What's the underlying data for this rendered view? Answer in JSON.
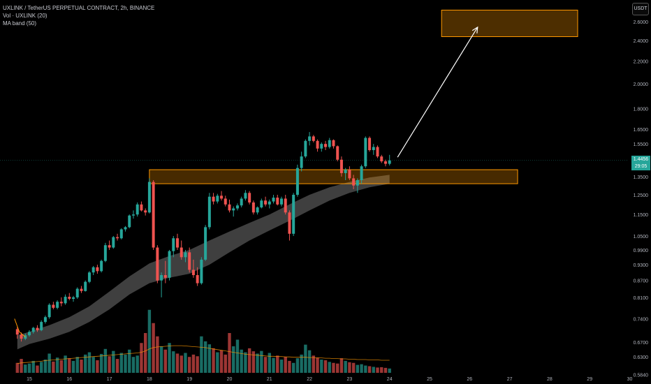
{
  "header": {
    "symbol_line": "UXLINK / TetherUS PERPETUAL CONTRACT, 2h, BINANCE",
    "volume_line": "Vol · UXLINK (20)",
    "ma_line": "MA band (50)",
    "unit_button": "USDT"
  },
  "last_price": {
    "value": "1.4456",
    "countdown": "29:05"
  },
  "colors": {
    "up": "#26a69a",
    "down": "#ef5350",
    "zone": "#ff9800",
    "band": "#4a4a4a",
    "volume_ma": "#ff9800",
    "arrow": "#ffffff"
  },
  "chart_data": {
    "type": "candlestick",
    "title": "",
    "y_scale": "log",
    "ylim": [
      0.584,
      2.8
    ],
    "y_ticks": [
      "2.6000",
      "2.4000",
      "2.2000",
      "2.0000",
      "1.8000",
      "1.6500",
      "1.5500",
      "1.3500",
      "1.2500",
      "1.1500",
      "1.0500",
      "0.9900",
      "0.9300",
      "0.8700",
      "0.8100",
      "0.7400",
      "0.6700",
      "0.6300",
      "0.5840"
    ],
    "x_ticks": [
      "15",
      "16",
      "17",
      "18",
      "19",
      "20",
      "21",
      "22",
      "23",
      "24",
      "25",
      "26",
      "27",
      "28",
      "29",
      "30"
    ],
    "x_range": [
      14.6,
      30.3
    ],
    "annotations": {
      "support_zone": {
        "x_start": 18.0,
        "x_end": 27.2,
        "y_low": 1.31,
        "y_high": 1.39
      },
      "target_zone": {
        "x_start": 25.3,
        "x_end": 28.7,
        "y_low": 2.44,
        "y_high": 2.73
      },
      "arrow": {
        "from": [
          24.2,
          1.465
        ],
        "to": [
          26.2,
          2.54
        ]
      }
    },
    "candles": [
      [
        14.7,
        0.708,
        0.715,
        0.68,
        0.692
      ],
      [
        14.8,
        0.692,
        0.698,
        0.672,
        0.68
      ],
      [
        14.9,
        0.68,
        0.695,
        0.676,
        0.69
      ],
      [
        15.0,
        0.69,
        0.705,
        0.686,
        0.7
      ],
      [
        15.1,
        0.7,
        0.715,
        0.695,
        0.712
      ],
      [
        15.2,
        0.712,
        0.72,
        0.7,
        0.705
      ],
      [
        15.3,
        0.705,
        0.735,
        0.702,
        0.73
      ],
      [
        15.4,
        0.73,
        0.75,
        0.725,
        0.745
      ],
      [
        15.5,
        0.745,
        0.79,
        0.74,
        0.785
      ],
      [
        15.6,
        0.785,
        0.795,
        0.77,
        0.775
      ],
      [
        15.7,
        0.775,
        0.8,
        0.77,
        0.795
      ],
      [
        15.8,
        0.795,
        0.81,
        0.78,
        0.79
      ],
      [
        15.9,
        0.79,
        0.82,
        0.785,
        0.812
      ],
      [
        16.0,
        0.812,
        0.825,
        0.8,
        0.805
      ],
      [
        16.1,
        0.805,
        0.815,
        0.795,
        0.81
      ],
      [
        16.2,
        0.81,
        0.845,
        0.805,
        0.84
      ],
      [
        16.3,
        0.84,
        0.85,
        0.825,
        0.832
      ],
      [
        16.4,
        0.832,
        0.87,
        0.83,
        0.865
      ],
      [
        16.5,
        0.865,
        0.905,
        0.86,
        0.9
      ],
      [
        16.6,
        0.9,
        0.925,
        0.89,
        0.92
      ],
      [
        16.7,
        0.92,
        0.93,
        0.895,
        0.905
      ],
      [
        16.8,
        0.905,
        0.95,
        0.9,
        0.945
      ],
      [
        16.9,
        0.945,
        1.02,
        0.94,
        1.01
      ],
      [
        17.0,
        1.01,
        1.03,
        0.99,
        1.0
      ],
      [
        17.1,
        1.0,
        1.05,
        0.995,
        1.045
      ],
      [
        17.2,
        1.045,
        1.06,
        1.03,
        1.04
      ],
      [
        17.3,
        1.04,
        1.085,
        1.035,
        1.08
      ],
      [
        17.4,
        1.08,
        1.095,
        1.07,
        1.09
      ],
      [
        17.5,
        1.09,
        1.15,
        1.085,
        1.145
      ],
      [
        17.6,
        1.145,
        1.17,
        1.13,
        1.15
      ],
      [
        17.7,
        1.15,
        1.21,
        1.14,
        1.2
      ],
      [
        17.8,
        1.2,
        1.215,
        1.165,
        1.17
      ],
      [
        17.9,
        1.17,
        1.18,
        1.145,
        1.16
      ],
      [
        18.0,
        1.16,
        1.34,
        1.155,
        1.32
      ],
      [
        18.1,
        1.32,
        1.33,
        0.99,
        1.0
      ],
      [
        18.2,
        1.0,
        1.01,
        0.86,
        0.87
      ],
      [
        18.3,
        0.87,
        0.9,
        0.81,
        0.89
      ],
      [
        18.4,
        0.89,
        0.945,
        0.86,
        0.88
      ],
      [
        18.5,
        0.88,
        0.99,
        0.87,
        0.985
      ],
      [
        18.6,
        0.985,
        1.05,
        0.96,
        1.04
      ],
      [
        18.7,
        1.04,
        1.06,
        0.99,
        1.0
      ],
      [
        18.8,
        1.0,
        1.03,
        0.95,
        0.96
      ],
      [
        18.9,
        0.96,
        0.99,
        0.94,
        0.98
      ],
      [
        19.0,
        0.98,
        1.0,
        0.9,
        0.91
      ],
      [
        19.1,
        0.91,
        0.95,
        0.88,
        0.89
      ],
      [
        19.2,
        0.89,
        0.92,
        0.85,
        0.86
      ],
      [
        19.3,
        0.86,
        0.96,
        0.855,
        0.95
      ],
      [
        19.4,
        0.95,
        1.1,
        0.945,
        1.09
      ],
      [
        19.5,
        1.09,
        1.26,
        1.08,
        1.24
      ],
      [
        19.6,
        1.24,
        1.26,
        1.2,
        1.215
      ],
      [
        19.7,
        1.215,
        1.255,
        1.205,
        1.245
      ],
      [
        19.8,
        1.245,
        1.27,
        1.22,
        1.23
      ],
      [
        19.9,
        1.23,
        1.245,
        1.19,
        1.2
      ],
      [
        20.0,
        1.2,
        1.225,
        1.16,
        1.17
      ],
      [
        20.1,
        1.17,
        1.19,
        1.14,
        1.18
      ],
      [
        20.2,
        1.18,
        1.205,
        1.17,
        1.195
      ],
      [
        20.3,
        1.195,
        1.24,
        1.185,
        1.23
      ],
      [
        20.4,
        1.23,
        1.275,
        1.22,
        1.26
      ],
      [
        20.5,
        1.26,
        1.27,
        1.2,
        1.21
      ],
      [
        20.6,
        1.21,
        1.22,
        1.15,
        1.16
      ],
      [
        20.7,
        1.16,
        1.19,
        1.15,
        1.185
      ],
      [
        20.8,
        1.185,
        1.23,
        1.18,
        1.22
      ],
      [
        20.9,
        1.22,
        1.24,
        1.19,
        1.2
      ],
      [
        21.0,
        1.2,
        1.225,
        1.18,
        1.215
      ],
      [
        21.1,
        1.215,
        1.25,
        1.205,
        1.235
      ],
      [
        21.2,
        1.235,
        1.25,
        1.195,
        1.2
      ],
      [
        21.3,
        1.2,
        1.24,
        1.19,
        1.23
      ],
      [
        21.4,
        1.23,
        1.25,
        1.15,
        1.16
      ],
      [
        21.5,
        1.16,
        1.17,
        1.03,
        1.06
      ],
      [
        21.6,
        1.06,
        1.26,
        1.05,
        1.25
      ],
      [
        21.7,
        1.25,
        1.42,
        1.24,
        1.4
      ],
      [
        21.8,
        1.4,
        1.5,
        1.38,
        1.47
      ],
      [
        21.9,
        1.47,
        1.58,
        1.46,
        1.57
      ],
      [
        22.0,
        1.57,
        1.63,
        1.54,
        1.6
      ],
      [
        22.1,
        1.6,
        1.61,
        1.56,
        1.57
      ],
      [
        22.2,
        1.57,
        1.58,
        1.5,
        1.52
      ],
      [
        22.3,
        1.52,
        1.56,
        1.5,
        1.55
      ],
      [
        22.4,
        1.55,
        1.57,
        1.51,
        1.53
      ],
      [
        22.5,
        1.53,
        1.59,
        1.52,
        1.575
      ],
      [
        22.6,
        1.575,
        1.58,
        1.52,
        1.535
      ],
      [
        22.7,
        1.535,
        1.54,
        1.44,
        1.45
      ],
      [
        22.8,
        1.45,
        1.47,
        1.35,
        1.37
      ],
      [
        22.9,
        1.37,
        1.4,
        1.33,
        1.39
      ],
      [
        23.0,
        1.39,
        1.41,
        1.33,
        1.34
      ],
      [
        23.1,
        1.34,
        1.36,
        1.28,
        1.3
      ],
      [
        23.2,
        1.3,
        1.34,
        1.26,
        1.33
      ],
      [
        23.3,
        1.33,
        1.42,
        1.31,
        1.41
      ],
      [
        23.4,
        1.41,
        1.6,
        1.4,
        1.59
      ],
      [
        23.5,
        1.59,
        1.6,
        1.5,
        1.51
      ],
      [
        23.6,
        1.51,
        1.55,
        1.48,
        1.53
      ],
      [
        23.7,
        1.53,
        1.54,
        1.46,
        1.47
      ],
      [
        23.8,
        1.47,
        1.48,
        1.43,
        1.44
      ],
      [
        23.9,
        1.44,
        1.45,
        1.41,
        1.425
      ],
      [
        24.0,
        1.425,
        1.48,
        1.415,
        1.4456
      ]
    ],
    "ma_band": {
      "x": [
        14.7,
        15.0,
        15.5,
        16.0,
        16.5,
        17.0,
        17.5,
        18.0,
        18.5,
        19.0,
        19.5,
        20.0,
        20.5,
        21.0,
        21.5,
        22.0,
        22.5,
        23.0,
        23.5,
        24.0
      ],
      "upper": [
        0.69,
        0.7,
        0.72,
        0.745,
        0.78,
        0.83,
        0.885,
        0.935,
        0.965,
        0.99,
        1.03,
        1.07,
        1.11,
        1.15,
        1.2,
        1.25,
        1.29,
        1.32,
        1.345,
        1.36
      ],
      "lower": [
        0.65,
        0.665,
        0.68,
        0.7,
        0.73,
        0.77,
        0.82,
        0.86,
        0.88,
        0.895,
        0.93,
        0.98,
        1.03,
        1.075,
        1.12,
        1.17,
        1.22,
        1.26,
        1.29,
        1.31
      ]
    },
    "volume": {
      "values": [
        30,
        42,
        25,
        28,
        36,
        22,
        33,
        40,
        58,
        34,
        46,
        38,
        52,
        44,
        36,
        48,
        40,
        55,
        62,
        48,
        38,
        57,
        72,
        50,
        66,
        42,
        60,
        55,
        70,
        48,
        52,
        90,
        120,
        190,
        150,
        110,
        80,
        70,
        90,
        65,
        58,
        52,
        60,
        48,
        55,
        50,
        110,
        95,
        86,
        74,
        62,
        68,
        55,
        120,
        80,
        100,
        70,
        62,
        74,
        65,
        58,
        66,
        48,
        60,
        45,
        52,
        40,
        48,
        36,
        30,
        44,
        55,
        85,
        68,
        52,
        46,
        40,
        38,
        33,
        30,
        28,
        44,
        36,
        32,
        30,
        24,
        26,
        22,
        20,
        18,
        16,
        17,
        15,
        13
      ],
      "max": 200,
      "ma": [
        28,
        30,
        31,
        32,
        33,
        34,
        35,
        37,
        38,
        39,
        40,
        41,
        42,
        43,
        44,
        45,
        46,
        47,
        48,
        49,
        50,
        51,
        52,
        53,
        54,
        55,
        56,
        57,
        58,
        59,
        60,
        62,
        66,
        72,
        76,
        78,
        79,
        80,
        81,
        82,
        82,
        82,
        81,
        80,
        79,
        78,
        77,
        76,
        74,
        72,
        70,
        68,
        66,
        64,
        62,
        60,
        58,
        56,
        55,
        54,
        53,
        52,
        51,
        50,
        50,
        49,
        49,
        48,
        48,
        47,
        47,
        47,
        47,
        46,
        46,
        45,
        45,
        44,
        44,
        43,
        43,
        42,
        42,
        41,
        41,
        40,
        40,
        40,
        39,
        39,
        39,
        38,
        38,
        38
      ]
    }
  }
}
